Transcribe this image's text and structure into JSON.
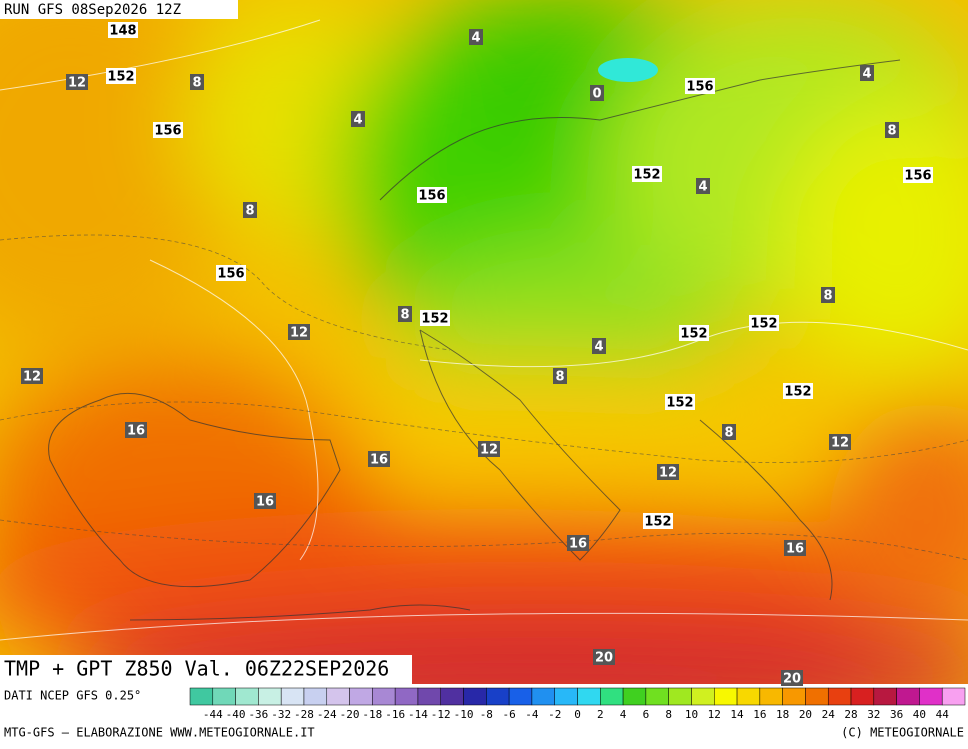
{
  "header": {
    "run": "RUN GFS 08Sep2026 12Z"
  },
  "map": {
    "title": "TMP + GPT Z850 Val. 06Z22SEP2026",
    "geopotential_labels": [
      148,
      152,
      156,
      156,
      156,
      152,
      156,
      152,
      156,
      152,
      152,
      152,
      152,
      152
    ],
    "temperature_labels": [
      4,
      12,
      8,
      4,
      0,
      4,
      8,
      4,
      8,
      8,
      12,
      8,
      4,
      12,
      8,
      8,
      16,
      12,
      12,
      16,
      12,
      16,
      16,
      16,
      20,
      20
    ]
  },
  "colorbar": {
    "source": "DATI NCEP GFS 0.25°",
    "labels": [
      -44,
      -40,
      -36,
      -32,
      -28,
      -24,
      -20,
      -18,
      -16,
      -14,
      -12,
      -10,
      -8,
      -6,
      -4,
      -2,
      0,
      2,
      4,
      6,
      8,
      10,
      12,
      14,
      16,
      18,
      20,
      24,
      28,
      32,
      36,
      40,
      44
    ],
    "colors": [
      "#40c8a0",
      "#70d8b8",
      "#a0e8d0",
      "#c8f0e4",
      "#d8e4f4",
      "#c8d0f0",
      "#d4c4ec",
      "#c0a8e4",
      "#a888d4",
      "#9068c4",
      "#7048ac",
      "#5030a0",
      "#2828a8",
      "#1840c8",
      "#1860e8",
      "#2090f0",
      "#28b8f8",
      "#30d8f0",
      "#30e080",
      "#40d020",
      "#70e020",
      "#a0e820",
      "#d0f020",
      "#f8f800",
      "#f8d800",
      "#f8b800",
      "#f89800",
      "#f07000",
      "#e84010",
      "#d82020",
      "#b81840",
      "#c01890",
      "#e030c8",
      "#f8a0f0"
    ]
  },
  "footer": {
    "left": "MTG-GFS – ELABORAZIONE WWW.METEOGIORNALE.IT",
    "right": "(C) METEOGIORNALE"
  }
}
